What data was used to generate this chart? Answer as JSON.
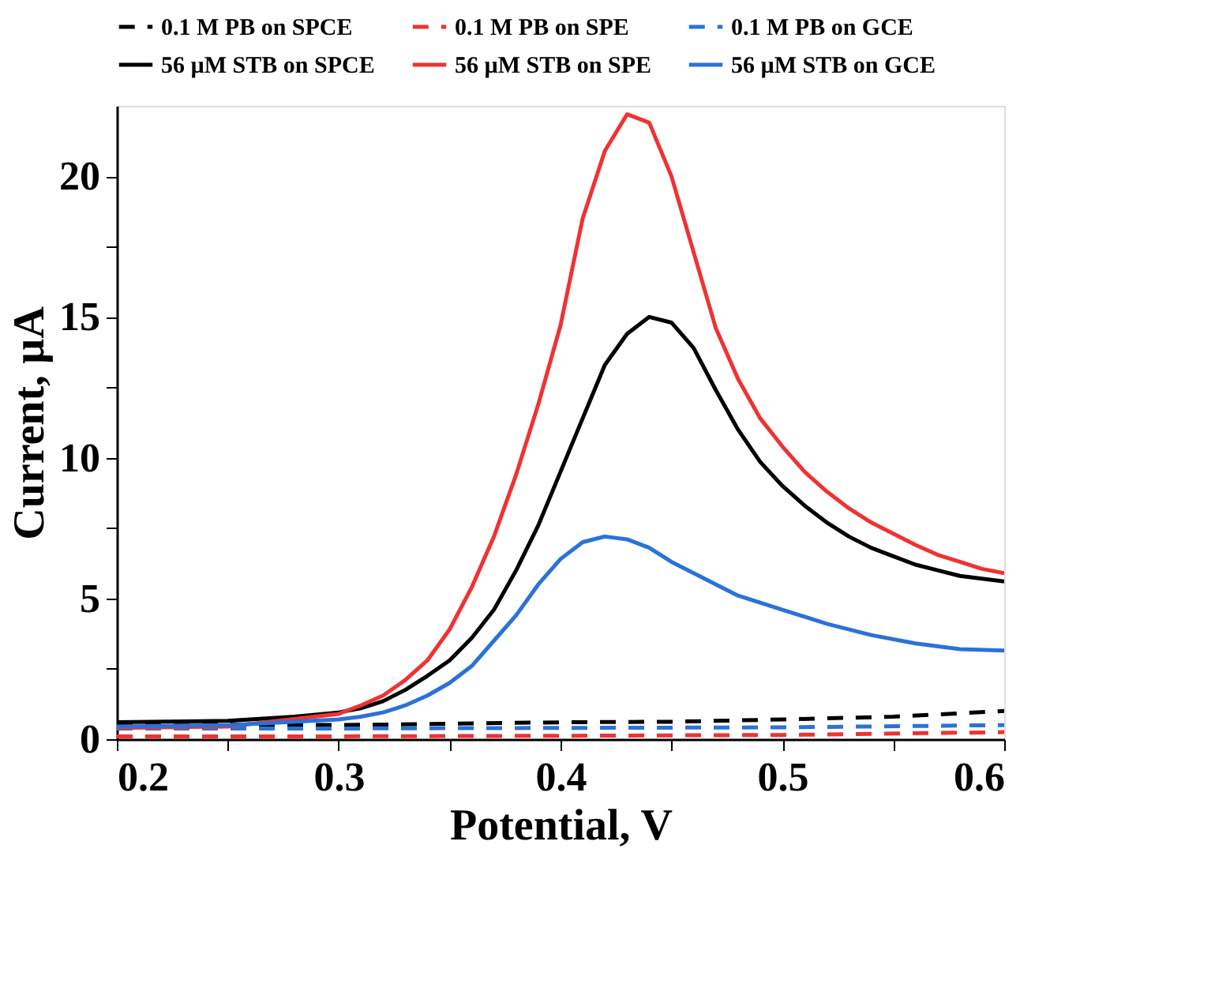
{
  "chart_data": {
    "type": "line",
    "xlabel": "Potential, V",
    "ylabel": "Current, µA",
    "xlim": [
      0.2,
      0.6
    ],
    "xticks": [
      0.2,
      {
        "value": 0.25,
        "label": null
      },
      0.3,
      {
        "value": 0.35,
        "label": null
      },
      0.4,
      {
        "value": 0.45,
        "label": null
      },
      0.5,
      {
        "value": 0.55,
        "label": null
      },
      0.6
    ],
    "ylim": [
      0,
      22.5
    ],
    "yticks": [
      0,
      {
        "value": 2.5,
        "label": null
      },
      5,
      {
        "value": 7.5,
        "label": null
      },
      10,
      {
        "value": 12.5,
        "label": null
      },
      15,
      {
        "value": 17.5,
        "label": null
      },
      20
    ],
    "grid": false,
    "legend": "top",
    "marker": "none",
    "series": [
      {
        "name": "0.1 M PB on SPCE",
        "color": "#000000",
        "line_style": "dashed",
        "x": [
          0.2,
          0.3,
          0.4,
          0.45,
          0.5,
          0.55,
          0.6
        ],
        "values": [
          0.55,
          0.5,
          0.6,
          0.62,
          0.7,
          0.8,
          1.0
        ]
      },
      {
        "name": "0.1 M PB on SPE",
        "color": "#ee3333",
        "line_style": "dashed",
        "x": [
          0.2,
          0.3,
          0.4,
          0.5,
          0.6
        ],
        "values": [
          0.1,
          0.1,
          0.12,
          0.15,
          0.25
        ]
      },
      {
        "name": "0.1 M PB on GCE",
        "color": "#2a72d8",
        "line_style": "dashed",
        "x": [
          0.2,
          0.3,
          0.4,
          0.5,
          0.6
        ],
        "values": [
          0.38,
          0.38,
          0.4,
          0.42,
          0.5
        ]
      },
      {
        "name": "56 µM STB on SPCE",
        "color": "#000000",
        "line_style": "solid",
        "x": [
          0.2,
          0.25,
          0.28,
          0.3,
          0.31,
          0.32,
          0.33,
          0.34,
          0.35,
          0.36,
          0.37,
          0.38,
          0.39,
          0.4,
          0.41,
          0.42,
          0.43,
          0.44,
          0.45,
          0.46,
          0.47,
          0.48,
          0.49,
          0.5,
          0.51,
          0.52,
          0.53,
          0.54,
          0.55,
          0.56,
          0.57,
          0.58,
          0.59,
          0.6
        ],
        "values": [
          0.6,
          0.65,
          0.8,
          0.95,
          1.1,
          1.35,
          1.75,
          2.25,
          2.8,
          3.6,
          4.6,
          6.0,
          7.6,
          9.5,
          11.4,
          13.3,
          14.4,
          15.0,
          14.8,
          13.9,
          12.4,
          11.0,
          9.85,
          9.0,
          8.3,
          7.7,
          7.2,
          6.8,
          6.5,
          6.2,
          6.0,
          5.8,
          5.7,
          5.6
        ]
      },
      {
        "name": "56 µM STB on SPE",
        "color": "#ee3333",
        "line_style": "solid",
        "x": [
          0.2,
          0.25,
          0.3,
          0.31,
          0.32,
          0.33,
          0.34,
          0.35,
          0.36,
          0.37,
          0.38,
          0.39,
          0.4,
          0.41,
          0.42,
          0.43,
          0.44,
          0.45,
          0.46,
          0.47,
          0.48,
          0.49,
          0.5,
          0.51,
          0.52,
          0.53,
          0.54,
          0.55,
          0.56,
          0.57,
          0.58,
          0.59,
          0.6
        ],
        "values": [
          0.4,
          0.45,
          0.9,
          1.2,
          1.55,
          2.1,
          2.8,
          3.9,
          5.4,
          7.2,
          9.4,
          11.9,
          14.7,
          18.5,
          20.9,
          22.2,
          21.9,
          20.0,
          17.3,
          14.6,
          12.8,
          11.4,
          10.4,
          9.5,
          8.8,
          8.2,
          7.7,
          7.3,
          6.9,
          6.55,
          6.3,
          6.05,
          5.9
        ]
      },
      {
        "name": "56 µM STB on GCE",
        "color": "#2a72d8",
        "line_style": "solid",
        "x": [
          0.2,
          0.25,
          0.3,
          0.31,
          0.32,
          0.33,
          0.34,
          0.35,
          0.36,
          0.37,
          0.38,
          0.39,
          0.4,
          0.41,
          0.42,
          0.43,
          0.44,
          0.45,
          0.46,
          0.47,
          0.48,
          0.49,
          0.5,
          0.52,
          0.54,
          0.56,
          0.58,
          0.6
        ],
        "values": [
          0.45,
          0.5,
          0.7,
          0.8,
          0.95,
          1.2,
          1.55,
          2.0,
          2.6,
          3.5,
          4.4,
          5.5,
          6.4,
          7.0,
          7.2,
          7.1,
          6.8,
          6.3,
          5.9,
          5.5,
          5.1,
          4.85,
          4.6,
          4.1,
          3.7,
          3.4,
          3.2,
          3.15
        ]
      }
    ]
  }
}
